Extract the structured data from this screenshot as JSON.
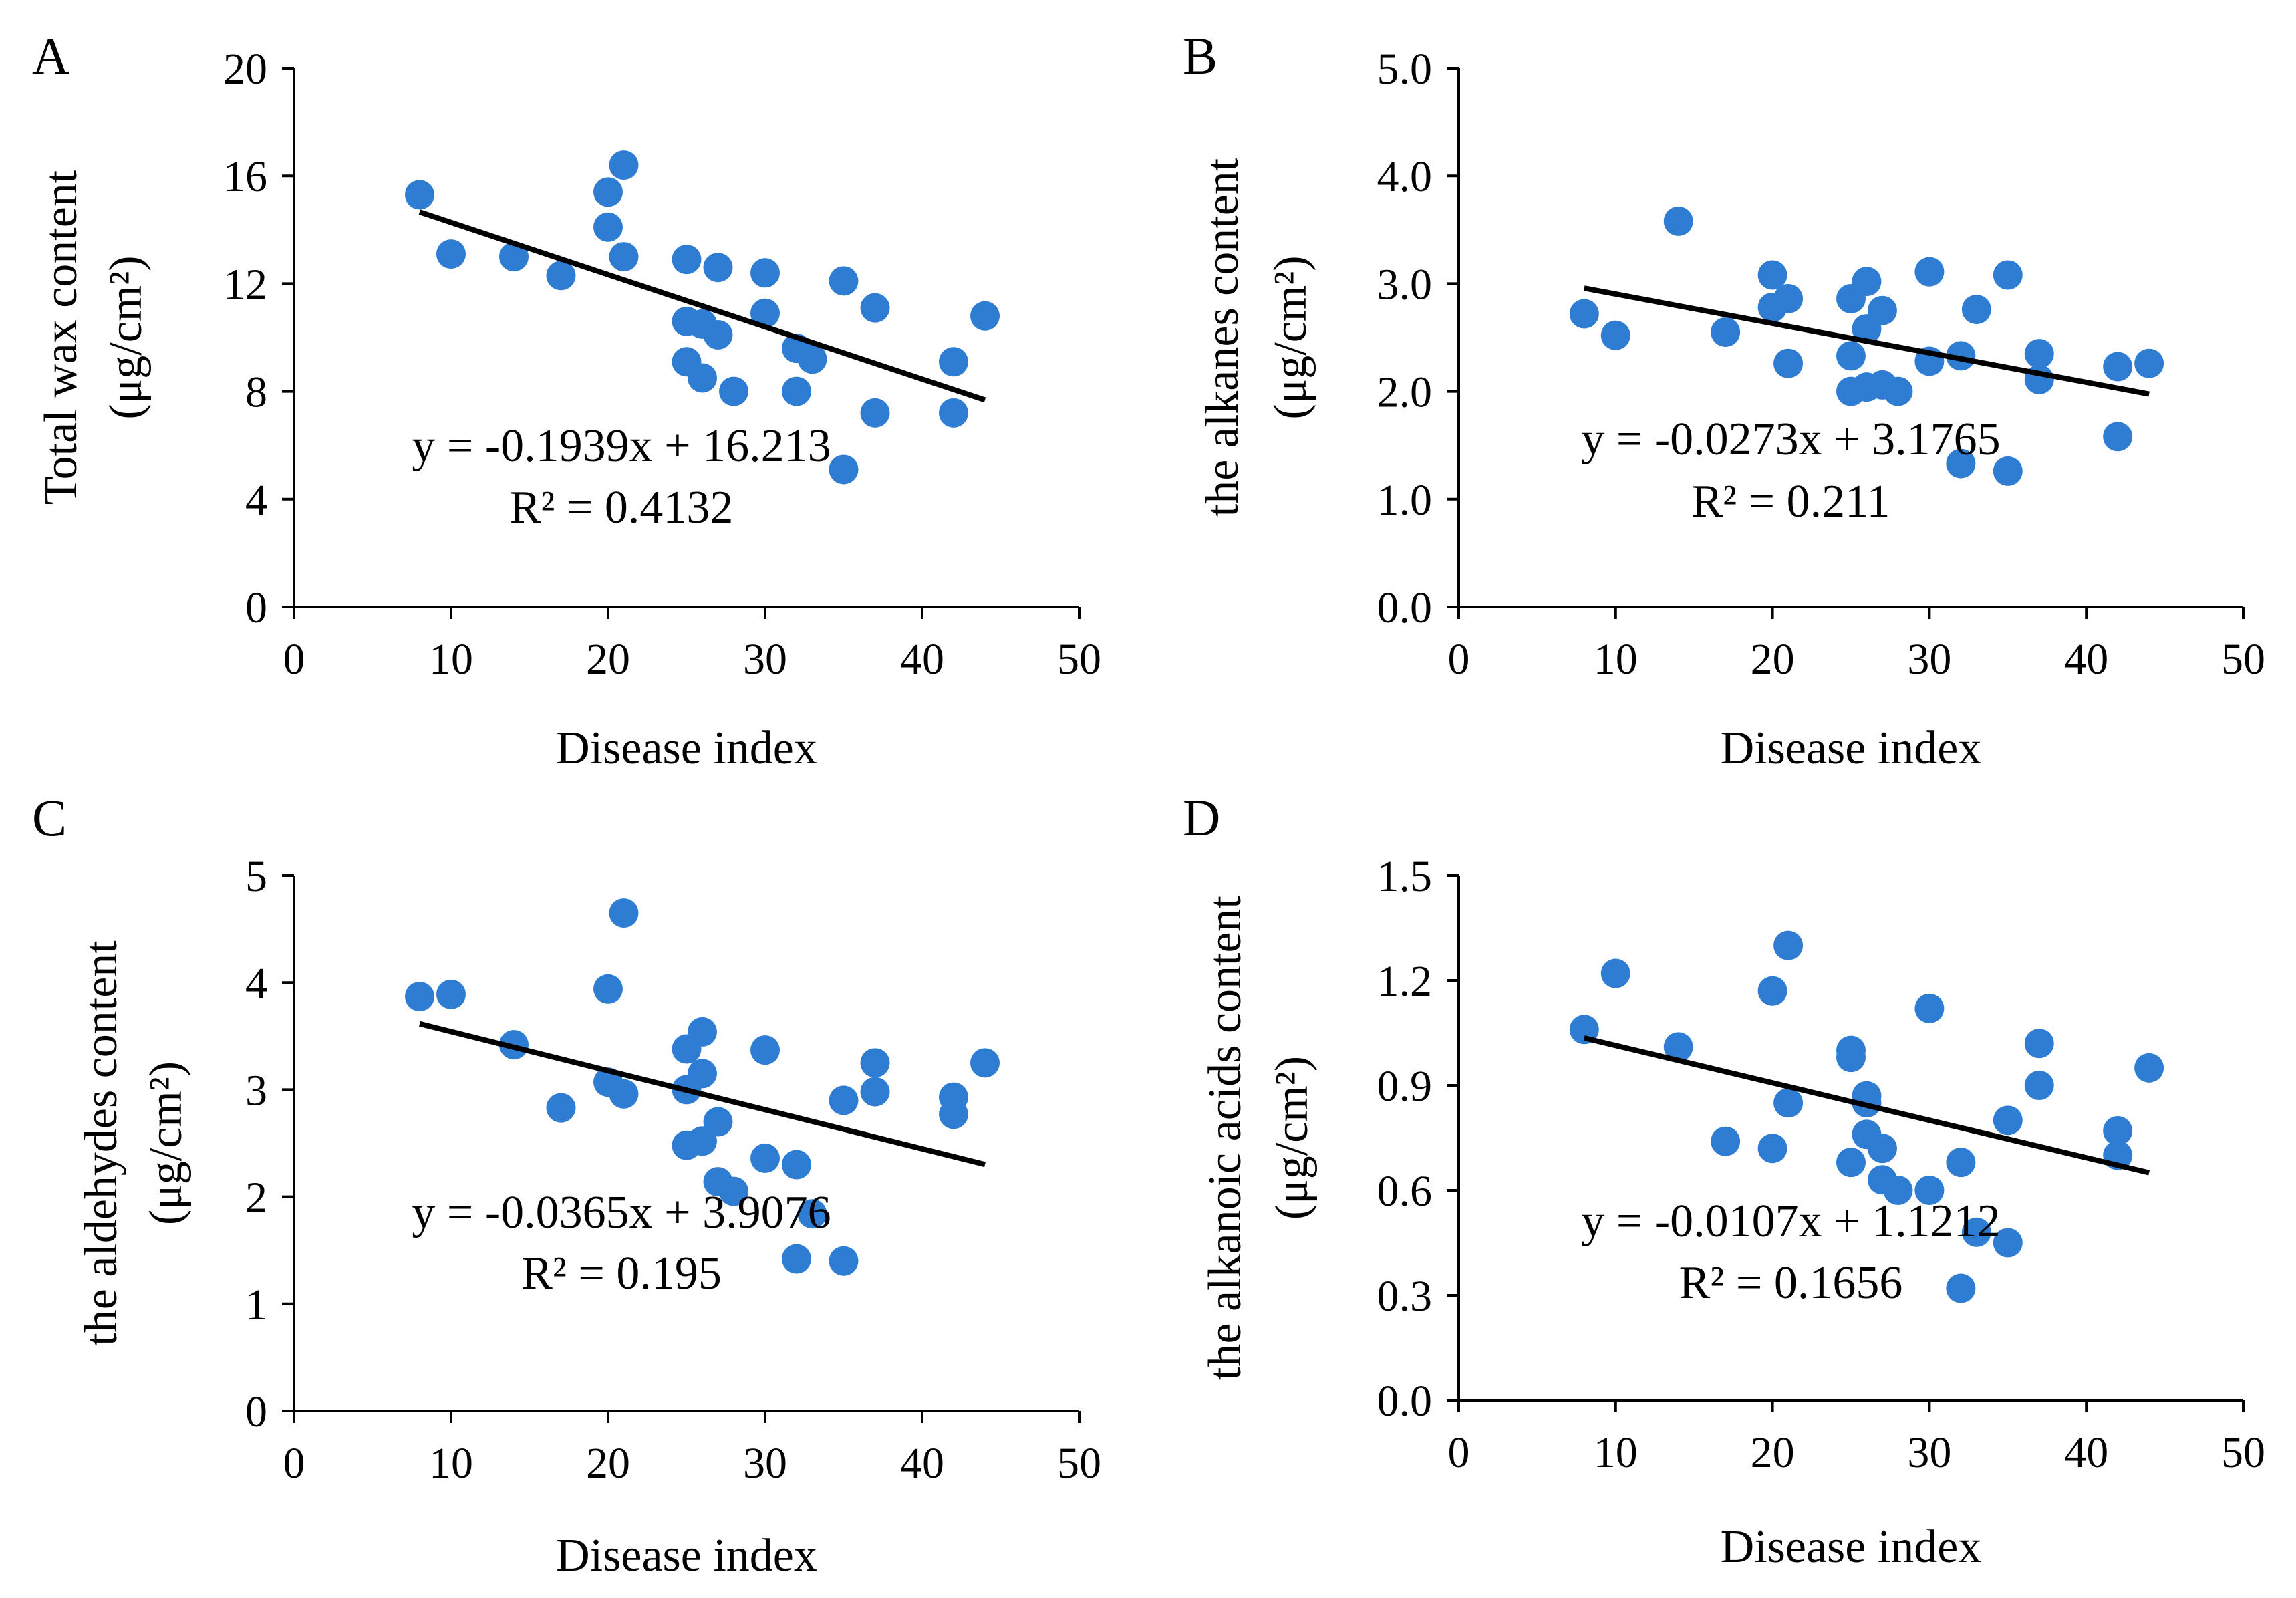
{
  "colors": {
    "marker": "#2f7dd3",
    "trendline": "#000000",
    "axis": "#000000"
  },
  "chart_data": [
    {
      "type": "scatter",
      "panel": "A",
      "xlabel": "Disease index",
      "ylabel_line1": "Total wax content",
      "ylabel_line2": "(μg/cm²)",
      "xlim": [
        0,
        50
      ],
      "ylim": [
        0,
        20
      ],
      "xticks": [
        "0",
        "10",
        "20",
        "30",
        "40",
        "50"
      ],
      "yticks": [
        "0",
        "4",
        "8",
        "12",
        "16",
        "20"
      ],
      "equation": "y = -0.1939x + 16.213",
      "r2": "R² = 0.4132",
      "trend": {
        "slope": -0.1939,
        "intercept": 16.213,
        "x_start": 8,
        "x_end": 44
      },
      "points": [
        {
          "x": 8,
          "y": 15.3
        },
        {
          "x": 10,
          "y": 13.1
        },
        {
          "x": 14,
          "y": 13.0
        },
        {
          "x": 17,
          "y": 12.3
        },
        {
          "x": 20,
          "y": 15.4
        },
        {
          "x": 20,
          "y": 14.1
        },
        {
          "x": 21,
          "y": 16.4
        },
        {
          "x": 21,
          "y": 13.0
        },
        {
          "x": 25,
          "y": 12.9
        },
        {
          "x": 25,
          "y": 10.6
        },
        {
          "x": 25,
          "y": 9.1
        },
        {
          "x": 26,
          "y": 10.5
        },
        {
          "x": 26,
          "y": 8.5
        },
        {
          "x": 27,
          "y": 12.6
        },
        {
          "x": 27,
          "y": 10.1
        },
        {
          "x": 28,
          "y": 8.0
        },
        {
          "x": 30,
          "y": 12.4
        },
        {
          "x": 30,
          "y": 10.9
        },
        {
          "x": 32,
          "y": 9.6
        },
        {
          "x": 32,
          "y": 8.0
        },
        {
          "x": 33,
          "y": 9.2
        },
        {
          "x": 35,
          "y": 12.1
        },
        {
          "x": 35,
          "y": 5.1
        },
        {
          "x": 37,
          "y": 11.1
        },
        {
          "x": 37,
          "y": 7.2
        },
        {
          "x": 42,
          "y": 9.1
        },
        {
          "x": 42,
          "y": 7.2
        },
        {
          "x": 44,
          "y": 10.8
        }
      ]
    },
    {
      "type": "scatter",
      "panel": "B",
      "xlabel": "Disease index",
      "ylabel_line1": "the alkanes content",
      "ylabel_line2": "(μg/cm²)",
      "xlim": [
        0,
        50
      ],
      "ylim": [
        0,
        5
      ],
      "xticks": [
        "0",
        "10",
        "20",
        "30",
        "40",
        "50"
      ],
      "yticks": [
        "0.0",
        "1.0",
        "2.0",
        "3.0",
        "4.0",
        "5.0"
      ],
      "equation": "y = -0.0273x + 3.1765",
      "r2": "R² = 0.211",
      "trend": {
        "slope": -0.0273,
        "intercept": 3.1765,
        "x_start": 8,
        "x_end": 44
      },
      "points": [
        {
          "x": 8,
          "y": 2.72
        },
        {
          "x": 10,
          "y": 2.52
        },
        {
          "x": 14,
          "y": 3.58
        },
        {
          "x": 17,
          "y": 2.55
        },
        {
          "x": 20,
          "y": 3.08
        },
        {
          "x": 20,
          "y": 2.78
        },
        {
          "x": 21,
          "y": 2.86
        },
        {
          "x": 21,
          "y": 2.26
        },
        {
          "x": 25,
          "y": 2.86
        },
        {
          "x": 25,
          "y": 2.33
        },
        {
          "x": 25,
          "y": 2.0
        },
        {
          "x": 26,
          "y": 3.02
        },
        {
          "x": 26,
          "y": 2.58
        },
        {
          "x": 26,
          "y": 2.04
        },
        {
          "x": 27,
          "y": 2.75
        },
        {
          "x": 27,
          "y": 2.06
        },
        {
          "x": 28,
          "y": 2.0
        },
        {
          "x": 30,
          "y": 3.11
        },
        {
          "x": 30,
          "y": 2.28
        },
        {
          "x": 32,
          "y": 2.33
        },
        {
          "x": 32,
          "y": 1.33
        },
        {
          "x": 33,
          "y": 2.76
        },
        {
          "x": 35,
          "y": 3.08
        },
        {
          "x": 35,
          "y": 1.26
        },
        {
          "x": 37,
          "y": 2.35
        },
        {
          "x": 37,
          "y": 2.11
        },
        {
          "x": 42,
          "y": 2.23
        },
        {
          "x": 42,
          "y": 1.58
        },
        {
          "x": 44,
          "y": 2.26
        }
      ]
    },
    {
      "type": "scatter",
      "panel": "C",
      "xlabel": "Disease index",
      "ylabel_line1": "the aldehydes content",
      "ylabel_line2": "(μg/cm²)",
      "xlim": [
        0,
        50
      ],
      "ylim": [
        0,
        5
      ],
      "xticks": [
        "0",
        "10",
        "20",
        "30",
        "40",
        "50"
      ],
      "yticks": [
        "0",
        "1",
        "2",
        "3",
        "4",
        "5"
      ],
      "equation": "y = -0.0365x + 3.9076",
      "r2": "R² = 0.195",
      "trend": {
        "slope": -0.0365,
        "intercept": 3.9076,
        "x_start": 8,
        "x_end": 44
      },
      "points": [
        {
          "x": 8,
          "y": 3.87
        },
        {
          "x": 10,
          "y": 3.89
        },
        {
          "x": 14,
          "y": 3.42
        },
        {
          "x": 17,
          "y": 2.83
        },
        {
          "x": 20,
          "y": 3.94
        },
        {
          "x": 20,
          "y": 3.07
        },
        {
          "x": 21,
          "y": 4.65
        },
        {
          "x": 21,
          "y": 2.96
        },
        {
          "x": 25,
          "y": 3.38
        },
        {
          "x": 25,
          "y": 3.0
        },
        {
          "x": 25,
          "y": 2.48
        },
        {
          "x": 26,
          "y": 3.54
        },
        {
          "x": 26,
          "y": 3.15
        },
        {
          "x": 26,
          "y": 2.52
        },
        {
          "x": 27,
          "y": 2.7
        },
        {
          "x": 27,
          "y": 2.14
        },
        {
          "x": 28,
          "y": 2.05
        },
        {
          "x": 30,
          "y": 3.37
        },
        {
          "x": 30,
          "y": 2.36
        },
        {
          "x": 32,
          "y": 2.3
        },
        {
          "x": 32,
          "y": 1.42
        },
        {
          "x": 33,
          "y": 1.84
        },
        {
          "x": 35,
          "y": 2.9
        },
        {
          "x": 35,
          "y": 1.4
        },
        {
          "x": 37,
          "y": 3.25
        },
        {
          "x": 37,
          "y": 2.98
        },
        {
          "x": 42,
          "y": 2.93
        },
        {
          "x": 42,
          "y": 2.77
        },
        {
          "x": 44,
          "y": 3.25
        }
      ]
    },
    {
      "type": "scatter",
      "panel": "D",
      "xlabel": "Disease index",
      "ylabel_line1": "the alkanoic acids content",
      "ylabel_line2": "(μg/cm²)",
      "xlim": [
        0,
        50
      ],
      "ylim": [
        0,
        1.5
      ],
      "xticks": [
        "0",
        "10",
        "20",
        "30",
        "40",
        "50"
      ],
      "yticks": [
        "0.0",
        "0.3",
        "0.6",
        "0.9",
        "1.2",
        "1.5"
      ],
      "equation": "y = -0.0107x + 1.1212",
      "r2": "R² = 0.1656",
      "trend": {
        "slope": -0.0107,
        "intercept": 1.1212,
        "x_start": 8,
        "x_end": 44
      },
      "points": [
        {
          "x": 8,
          "y": 1.06
        },
        {
          "x": 10,
          "y": 1.22
        },
        {
          "x": 14,
          "y": 1.01
        },
        {
          "x": 17,
          "y": 0.74
        },
        {
          "x": 20,
          "y": 1.17
        },
        {
          "x": 20,
          "y": 0.72
        },
        {
          "x": 21,
          "y": 1.3
        },
        {
          "x": 21,
          "y": 0.85
        },
        {
          "x": 25,
          "y": 1.0
        },
        {
          "x": 25,
          "y": 0.98
        },
        {
          "x": 25,
          "y": 0.68
        },
        {
          "x": 26,
          "y": 0.87
        },
        {
          "x": 26,
          "y": 0.85
        },
        {
          "x": 26,
          "y": 0.76
        },
        {
          "x": 27,
          "y": 0.72
        },
        {
          "x": 27,
          "y": 0.63
        },
        {
          "x": 28,
          "y": 0.6
        },
        {
          "x": 30,
          "y": 1.12
        },
        {
          "x": 30,
          "y": 0.6
        },
        {
          "x": 32,
          "y": 0.68
        },
        {
          "x": 32,
          "y": 0.32
        },
        {
          "x": 33,
          "y": 0.48
        },
        {
          "x": 35,
          "y": 0.8
        },
        {
          "x": 35,
          "y": 0.45
        },
        {
          "x": 37,
          "y": 1.02
        },
        {
          "x": 37,
          "y": 0.9
        },
        {
          "x": 42,
          "y": 0.77
        },
        {
          "x": 42,
          "y": 0.7
        },
        {
          "x": 44,
          "y": 0.95
        }
      ]
    }
  ]
}
